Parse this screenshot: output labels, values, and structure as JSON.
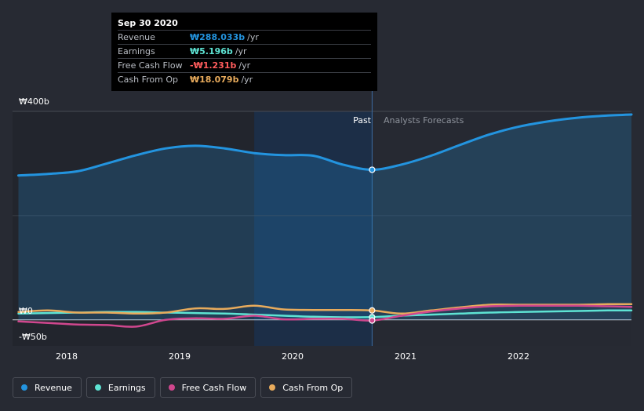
{
  "chart_data": {
    "type": "line",
    "x_range": [
      2017.7,
      2022.95
    ],
    "ylim": [
      -50,
      400
    ],
    "y_tick_labels": [
      {
        "value": 400,
        "label": "₩400b"
      },
      {
        "value": 0,
        "label": "₩0"
      },
      {
        "value": -50,
        "label": "-₩50b"
      }
    ],
    "x_ticks": [
      {
        "value": 2018,
        "label": "2018"
      },
      {
        "value": 2019,
        "label": "2019"
      },
      {
        "value": 2020,
        "label": "2020"
      },
      {
        "value": 2021,
        "label": "2021"
      },
      {
        "value": 2022,
        "label": "2022"
      }
    ],
    "past_label": "Past",
    "forecast_label": "Analysts Forecasts",
    "divider_x": 2020.75,
    "highlight_start": 2019.75,
    "series": [
      {
        "name": "Revenue",
        "color": "#2394df",
        "fill": true,
        "points": [
          [
            2017.75,
            277
          ],
          [
            2018.0,
            280
          ],
          [
            2018.25,
            285
          ],
          [
            2018.5,
            300
          ],
          [
            2018.75,
            316
          ],
          [
            2019.0,
            329
          ],
          [
            2019.25,
            334
          ],
          [
            2019.5,
            329
          ],
          [
            2019.75,
            320
          ],
          [
            2020.0,
            316
          ],
          [
            2020.25,
            315
          ],
          [
            2020.5,
            298
          ],
          [
            2020.75,
            288
          ],
          [
            2021.0,
            298
          ],
          [
            2021.25,
            315
          ],
          [
            2021.5,
            336
          ],
          [
            2021.75,
            356
          ],
          [
            2022.0,
            371
          ],
          [
            2022.25,
            381
          ],
          [
            2022.5,
            388
          ],
          [
            2022.75,
            392
          ],
          [
            2022.95,
            394
          ]
        ]
      },
      {
        "name": "Earnings",
        "color": "#5ee3d3",
        "fill": false,
        "points": [
          [
            2017.75,
            12
          ],
          [
            2018.0,
            13
          ],
          [
            2018.25,
            14
          ],
          [
            2018.5,
            15
          ],
          [
            2018.75,
            15
          ],
          [
            2019.0,
            14
          ],
          [
            2019.25,
            13
          ],
          [
            2019.5,
            12
          ],
          [
            2019.75,
            10
          ],
          [
            2020.0,
            8
          ],
          [
            2020.25,
            6
          ],
          [
            2020.5,
            5
          ],
          [
            2020.75,
            5.196
          ],
          [
            2021.0,
            8
          ],
          [
            2021.25,
            10
          ],
          [
            2021.5,
            12
          ],
          [
            2021.75,
            14
          ],
          [
            2022.0,
            15
          ],
          [
            2022.25,
            16
          ],
          [
            2022.5,
            17
          ],
          [
            2022.75,
            18
          ],
          [
            2022.95,
            18
          ]
        ]
      },
      {
        "name": "Free Cash Flow",
        "color": "#d0478e",
        "fill": false,
        "points": [
          [
            2017.75,
            -3
          ],
          [
            2018.0,
            -6
          ],
          [
            2018.25,
            -9
          ],
          [
            2018.5,
            -10
          ],
          [
            2018.75,
            -13
          ],
          [
            2019.0,
            0
          ],
          [
            2019.25,
            3
          ],
          [
            2019.5,
            2
          ],
          [
            2019.75,
            8
          ],
          [
            2020.0,
            1
          ],
          [
            2020.25,
            2
          ],
          [
            2020.5,
            2
          ],
          [
            2020.75,
            -1.231
          ],
          [
            2021.0,
            8
          ],
          [
            2021.25,
            16
          ],
          [
            2021.5,
            22
          ],
          [
            2021.75,
            26
          ],
          [
            2022.0,
            27
          ],
          [
            2022.25,
            27
          ],
          [
            2022.5,
            27
          ],
          [
            2022.75,
            26
          ],
          [
            2022.95,
            25
          ]
        ]
      },
      {
        "name": "Cash From Op",
        "color": "#e8ab5c",
        "fill": false,
        "points": [
          [
            2017.75,
            15
          ],
          [
            2018.0,
            18
          ],
          [
            2018.25,
            14
          ],
          [
            2018.5,
            14
          ],
          [
            2018.75,
            12
          ],
          [
            2019.0,
            14
          ],
          [
            2019.25,
            22
          ],
          [
            2019.5,
            21
          ],
          [
            2019.75,
            27
          ],
          [
            2020.0,
            20
          ],
          [
            2020.25,
            19
          ],
          [
            2020.5,
            19
          ],
          [
            2020.75,
            18.079
          ],
          [
            2021.0,
            12
          ],
          [
            2021.25,
            18
          ],
          [
            2021.5,
            24
          ],
          [
            2021.75,
            29
          ],
          [
            2022.0,
            29
          ],
          [
            2022.25,
            29
          ],
          [
            2022.5,
            29
          ],
          [
            2022.75,
            30
          ],
          [
            2022.95,
            30
          ]
        ]
      }
    ],
    "tooltip": {
      "date": "Sep 30 2020",
      "unit": "/yr",
      "rows": [
        {
          "label": "Revenue",
          "value": "₩288.033b",
          "color": "#2394df"
        },
        {
          "label": "Earnings",
          "value": "₩5.196b",
          "color": "#5ee3d3"
        },
        {
          "label": "Free Cash Flow",
          "value": "-₩1.231b",
          "color": "#ff5c5c"
        },
        {
          "label": "Cash From Op",
          "value": "₩18.079b",
          "color": "#e8ab5c"
        }
      ]
    }
  },
  "legend": [
    {
      "label": "Revenue",
      "color": "#2394df"
    },
    {
      "label": "Earnings",
      "color": "#5ee3d3"
    },
    {
      "label": "Free Cash Flow",
      "color": "#d0478e"
    },
    {
      "label": "Cash From Op",
      "color": "#e8ab5c"
    }
  ]
}
